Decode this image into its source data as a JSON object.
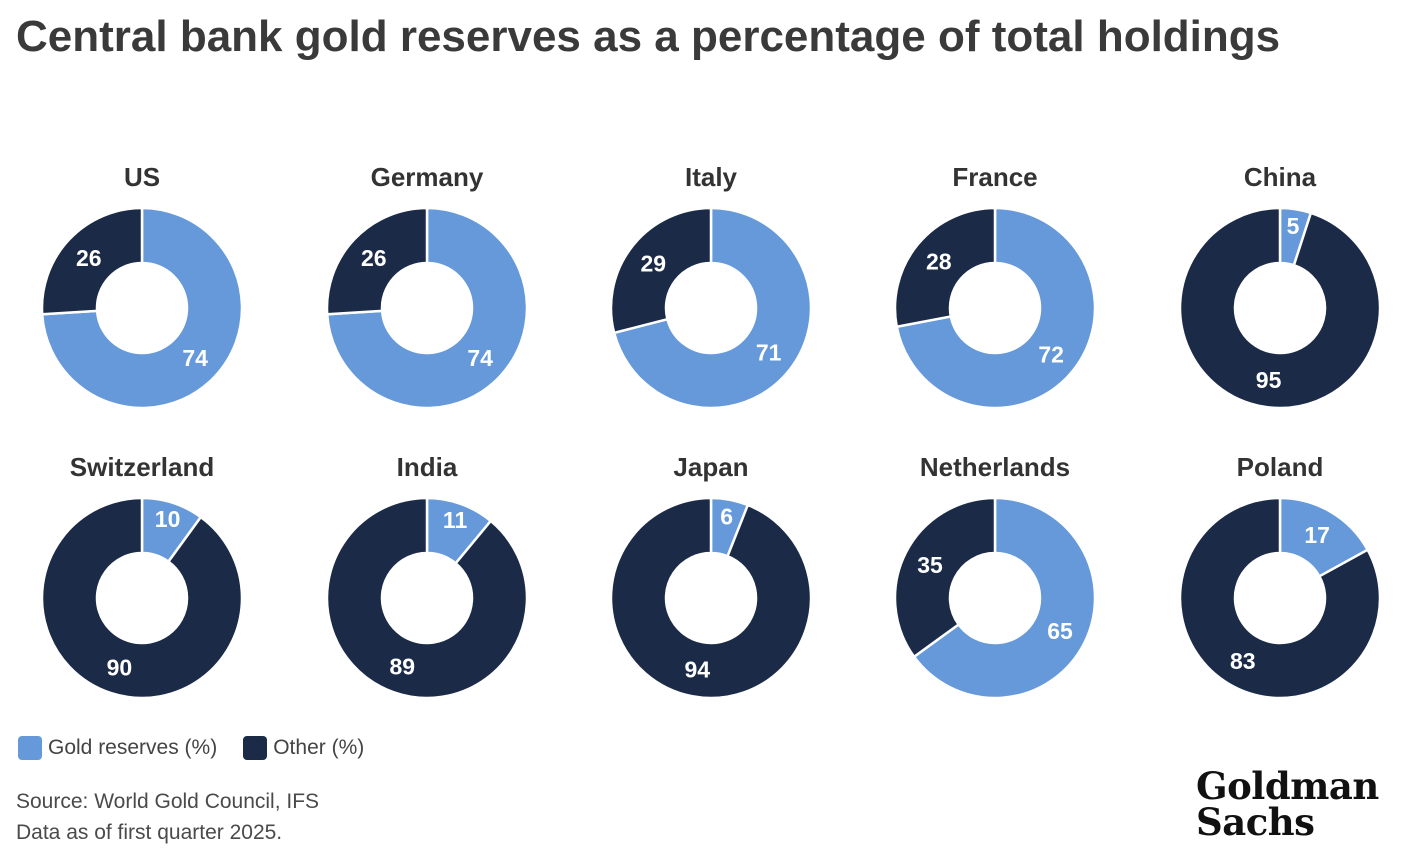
{
  "title": "Central bank gold reserves as a percentage of total holdings",
  "colors": {
    "gold": "#6699d9",
    "other": "#1b2b47"
  },
  "legend": {
    "gold": "Gold reserves (%)",
    "other": "Other (%)"
  },
  "source": {
    "line1": "Source: World Gold Council, IFS",
    "line2": "Data as of first quarter 2025."
  },
  "logo": {
    "line1": "Goldman",
    "line2": "Sachs"
  },
  "chart_data": {
    "type": "pie",
    "title": "Central bank gold reserves as a percentage of total holdings",
    "series_names": [
      "Gold reserves (%)",
      "Other (%)"
    ],
    "charts": [
      {
        "name": "US",
        "gold": 74,
        "other": 26
      },
      {
        "name": "Germany",
        "gold": 74,
        "other": 26
      },
      {
        "name": "Italy",
        "gold": 71,
        "other": 29
      },
      {
        "name": "France",
        "gold": 72,
        "other": 28
      },
      {
        "name": "China",
        "gold": 5,
        "other": 95
      },
      {
        "name": "Switzerland",
        "gold": 10,
        "other": 90
      },
      {
        "name": "India",
        "gold": 11,
        "other": 89
      },
      {
        "name": "Japan",
        "gold": 6,
        "other": 94
      },
      {
        "name": "Netherlands",
        "gold": 65,
        "other": 35
      },
      {
        "name": "Poland",
        "gold": 17,
        "other": 83
      }
    ]
  }
}
